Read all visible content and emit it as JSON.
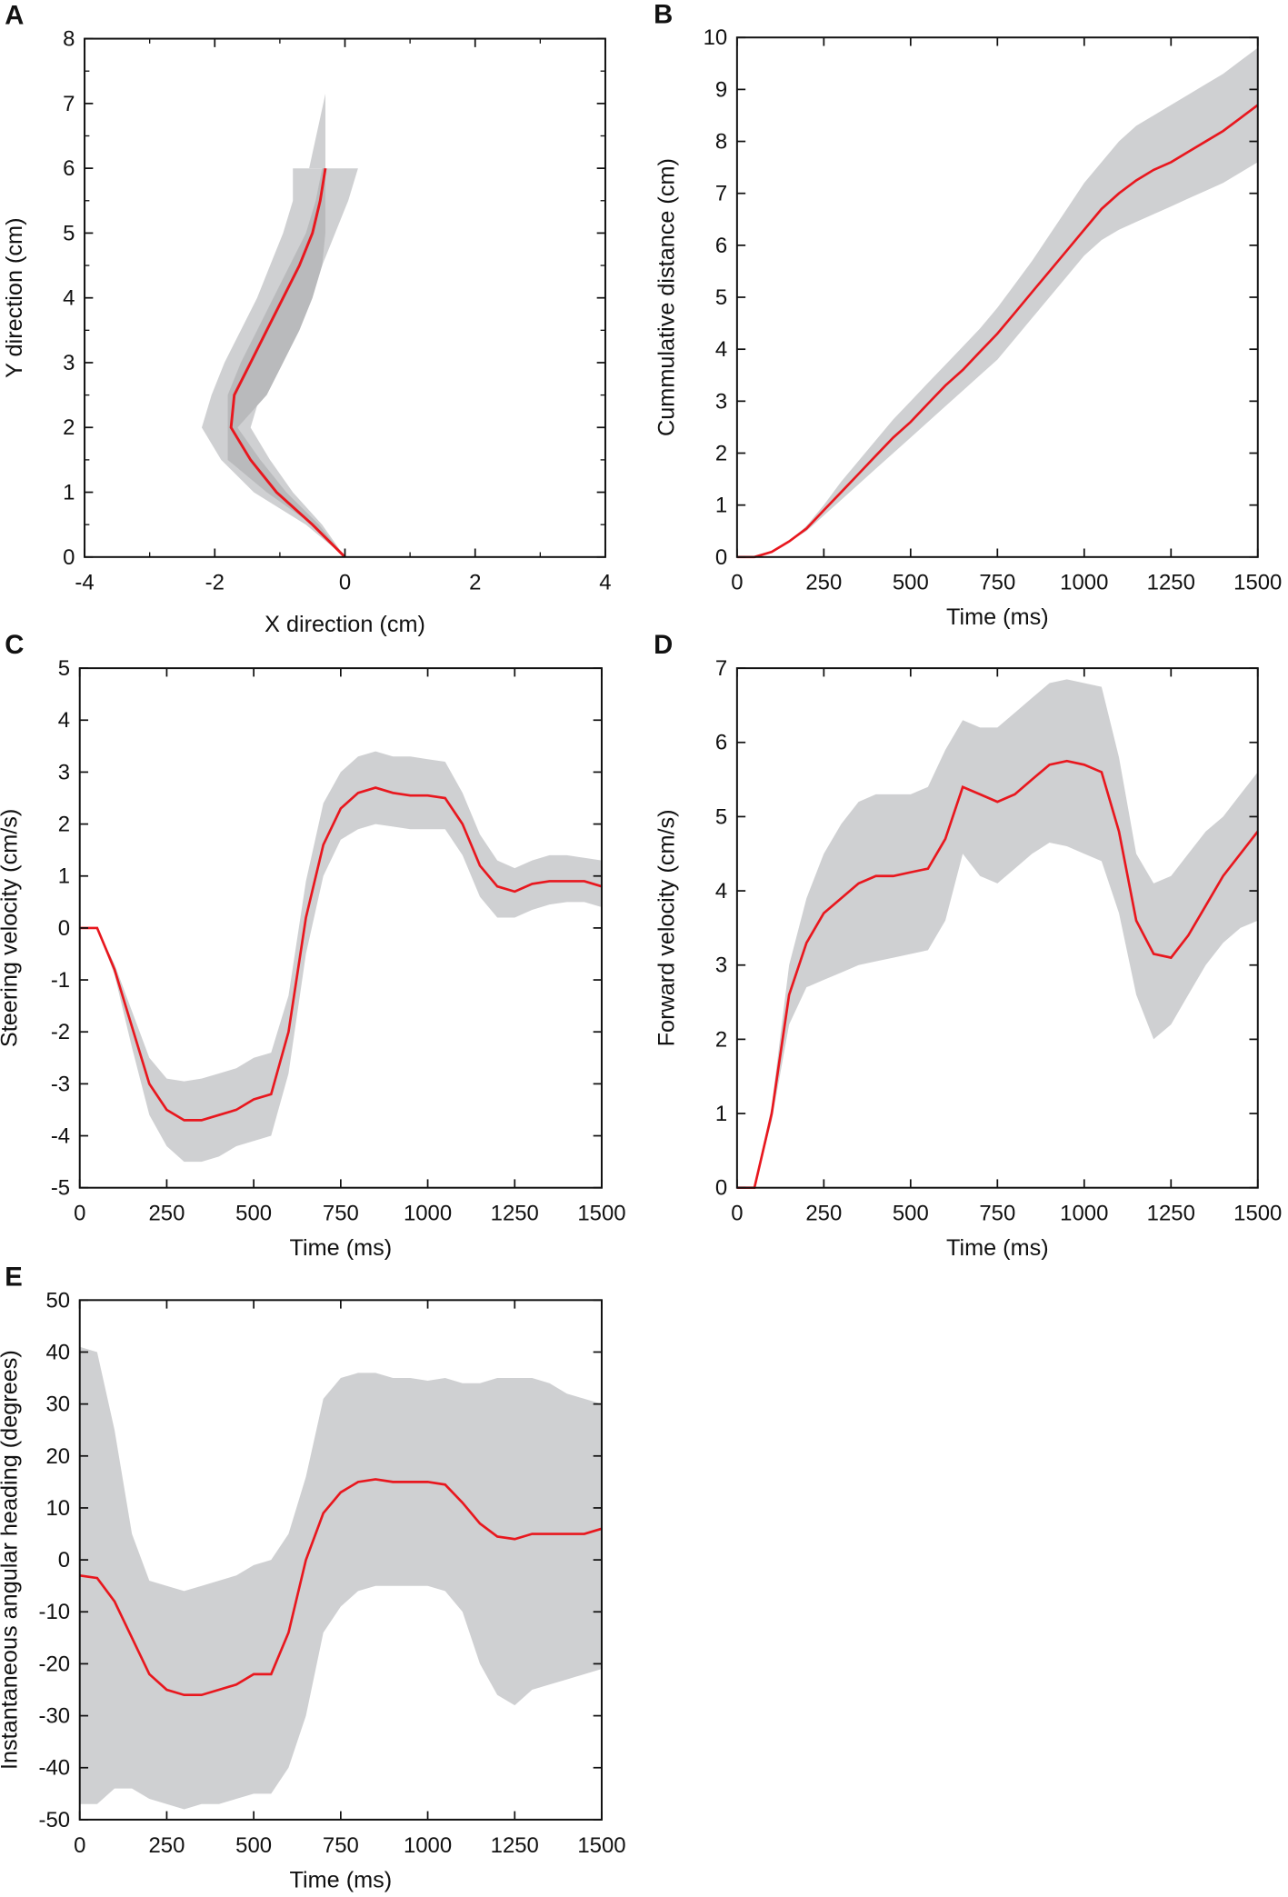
{
  "colors": {
    "mean": "#e8171e",
    "band": "#cfd0d2",
    "band_dark": "#b9babc",
    "axis": "#111111"
  },
  "chart_data": [
    {
      "id": "A",
      "panel_label": "A",
      "type": "line",
      "xlabel": "X direction (cm)",
      "ylabel": "Y direction (cm)",
      "xlim": [
        -4,
        4
      ],
      "ylim": [
        0,
        8
      ],
      "xticks": [
        -4,
        -2,
        0,
        2,
        4
      ],
      "yticks": [
        0,
        1,
        2,
        3,
        4,
        5,
        6,
        7,
        8
      ],
      "orientation": "x_vs_y",
      "y": [
        0,
        0.5,
        1,
        1.5,
        2,
        2.5,
        3,
        3.5,
        4,
        4.5,
        5,
        5.5,
        6
      ],
      "mean_x": [
        0,
        -0.5,
        -1.05,
        -1.45,
        -1.75,
        -1.7,
        -1.45,
        -1.2,
        -0.95,
        -0.7,
        -0.5,
        -0.38,
        -0.3
      ],
      "band_lo_x": [
        0,
        -0.6,
        -1.4,
        -1.9,
        -2.2,
        -2.05,
        -1.85,
        -1.6,
        -1.35,
        -1.15,
        -0.95,
        -0.8,
        -0.8
      ],
      "band_hi_x": [
        0,
        -0.35,
        -0.8,
        -1.15,
        -1.45,
        -1.3,
        -1.05,
        -0.8,
        -0.55,
        -0.35,
        -0.15,
        0.05,
        0.2
      ],
      "inner_lo_x": [
        0,
        -0.5,
        -1.2,
        -1.8,
        -1.8,
        -1.8,
        -1.6,
        -1.35,
        -1.1,
        -0.85,
        -0.6,
        -0.45,
        -0.35
      ],
      "inner_hi_x": [
        0,
        -0.4,
        -0.9,
        -1.3,
        -1.65,
        -1.2,
        -0.95,
        -0.7,
        -0.5,
        -0.35,
        -0.3,
        -0.3,
        -0.3
      ],
      "spike": [
        [
          -0.55,
          6
        ],
        [
          -0.3,
          7.15
        ],
        [
          -0.3,
          6
        ]
      ]
    },
    {
      "id": "B",
      "panel_label": "B",
      "type": "line",
      "xlabel": "Time (ms)",
      "ylabel": "Cummulative distance (cm)",
      "xlim": [
        0,
        1500
      ],
      "ylim": [
        0,
        10
      ],
      "xticks": [
        0,
        250,
        500,
        750,
        1000,
        1250,
        1500
      ],
      "yticks": [
        0,
        1,
        2,
        3,
        4,
        5,
        6,
        7,
        8,
        9,
        10
      ],
      "x": [
        0,
        50,
        100,
        150,
        200,
        250,
        300,
        350,
        400,
        450,
        500,
        550,
        600,
        650,
        700,
        750,
        800,
        850,
        900,
        950,
        1000,
        1050,
        1100,
        1150,
        1200,
        1250,
        1300,
        1350,
        1400,
        1450,
        1500
      ],
      "mean": [
        0,
        0,
        0.1,
        0.3,
        0.55,
        0.9,
        1.25,
        1.6,
        1.95,
        2.3,
        2.6,
        2.95,
        3.3,
        3.6,
        3.95,
        4.3,
        4.7,
        5.1,
        5.5,
        5.9,
        6.3,
        6.7,
        7.0,
        7.25,
        7.45,
        7.6,
        7.8,
        8.0,
        8.2,
        8.45,
        8.7
      ],
      "lo": [
        0,
        0,
        0.1,
        0.3,
        0.5,
        0.8,
        1.1,
        1.4,
        1.7,
        2.0,
        2.3,
        2.6,
        2.9,
        3.2,
        3.5,
        3.8,
        4.2,
        4.6,
        5.0,
        5.4,
        5.8,
        6.1,
        6.3,
        6.45,
        6.6,
        6.75,
        6.9,
        7.05,
        7.2,
        7.4,
        7.6
      ],
      "hi": [
        0,
        0,
        0.1,
        0.3,
        0.6,
        1.0,
        1.45,
        1.85,
        2.25,
        2.65,
        3.0,
        3.35,
        3.7,
        4.05,
        4.4,
        4.8,
        5.25,
        5.7,
        6.2,
        6.7,
        7.2,
        7.6,
        8.0,
        8.3,
        8.5,
        8.7,
        8.9,
        9.1,
        9.3,
        9.55,
        9.8
      ]
    },
    {
      "id": "C",
      "panel_label": "C",
      "type": "line",
      "xlabel": "Time (ms)",
      "ylabel": "Steering velocity (cm/s)",
      "xlim": [
        0,
        1500
      ],
      "ylim": [
        -5,
        5
      ],
      "xticks": [
        0,
        250,
        500,
        750,
        1000,
        1250,
        1500
      ],
      "yticks": [
        -5,
        -4,
        -3,
        -2,
        -1,
        0,
        1,
        2,
        3,
        4,
        5
      ],
      "x": [
        0,
        50,
        100,
        150,
        200,
        250,
        300,
        350,
        400,
        450,
        500,
        550,
        600,
        650,
        700,
        750,
        800,
        850,
        900,
        950,
        1000,
        1050,
        1100,
        1150,
        1200,
        1250,
        1300,
        1350,
        1400,
        1450,
        1500
      ],
      "mean": [
        0,
        0,
        -0.8,
        -1.9,
        -3.0,
        -3.5,
        -3.7,
        -3.7,
        -3.6,
        -3.5,
        -3.3,
        -3.2,
        -2.0,
        0.2,
        1.6,
        2.3,
        2.6,
        2.7,
        2.6,
        2.55,
        2.55,
        2.5,
        2.0,
        1.2,
        0.8,
        0.7,
        0.85,
        0.9,
        0.9,
        0.9,
        0.8
      ],
      "lo": [
        0,
        0,
        -0.9,
        -2.3,
        -3.6,
        -4.2,
        -4.5,
        -4.5,
        -4.4,
        -4.2,
        -4.1,
        -4.0,
        -2.8,
        -0.5,
        1.0,
        1.7,
        1.9,
        2.0,
        1.95,
        1.9,
        1.9,
        1.9,
        1.4,
        0.6,
        0.2,
        0.2,
        0.35,
        0.45,
        0.5,
        0.5,
        0.4
      ],
      "hi": [
        0,
        0,
        -0.7,
        -1.6,
        -2.5,
        -2.9,
        -2.95,
        -2.9,
        -2.8,
        -2.7,
        -2.5,
        -2.4,
        -1.3,
        0.9,
        2.4,
        3.0,
        3.3,
        3.4,
        3.3,
        3.3,
        3.25,
        3.2,
        2.6,
        1.8,
        1.3,
        1.15,
        1.3,
        1.4,
        1.4,
        1.35,
        1.3
      ]
    },
    {
      "id": "D",
      "panel_label": "D",
      "type": "line",
      "xlabel": "Time (ms)",
      "ylabel": "Forward velocity (cm/s)",
      "xlim": [
        0,
        1500
      ],
      "ylim": [
        0,
        7
      ],
      "xticks": [
        0,
        250,
        500,
        750,
        1000,
        1250,
        1500
      ],
      "yticks": [
        0,
        1,
        2,
        3,
        4,
        5,
        6,
        7
      ],
      "x": [
        0,
        50,
        100,
        150,
        200,
        250,
        300,
        350,
        400,
        450,
        500,
        550,
        600,
        650,
        700,
        750,
        800,
        850,
        900,
        950,
        1000,
        1050,
        1100,
        1150,
        1200,
        1250,
        1300,
        1350,
        1400,
        1450,
        1500
      ],
      "mean": [
        0,
        0,
        1.0,
        2.6,
        3.3,
        3.7,
        3.9,
        4.1,
        4.2,
        4.2,
        4.25,
        4.3,
        4.7,
        5.4,
        5.3,
        5.2,
        5.3,
        5.5,
        5.7,
        5.75,
        5.7,
        5.6,
        4.8,
        3.6,
        3.15,
        3.1,
        3.4,
        3.8,
        4.2,
        4.5,
        4.8
      ],
      "lo": [
        0,
        0,
        0.9,
        2.2,
        2.7,
        2.8,
        2.9,
        3.0,
        3.05,
        3.1,
        3.15,
        3.2,
        3.6,
        4.5,
        4.2,
        4.1,
        4.3,
        4.5,
        4.65,
        4.6,
        4.5,
        4.4,
        3.7,
        2.6,
        2.0,
        2.2,
        2.6,
        3.0,
        3.3,
        3.5,
        3.6
      ],
      "hi": [
        0,
        0,
        1.1,
        3.0,
        3.9,
        4.5,
        4.9,
        5.2,
        5.3,
        5.3,
        5.3,
        5.4,
        5.9,
        6.3,
        6.2,
        6.2,
        6.4,
        6.6,
        6.8,
        6.85,
        6.8,
        6.75,
        5.8,
        4.5,
        4.1,
        4.2,
        4.5,
        4.8,
        5.0,
        5.3,
        5.6
      ]
    },
    {
      "id": "E",
      "panel_label": "E",
      "type": "line",
      "xlabel": "Time (ms)",
      "ylabel": "Instantaneous angular heading (degrees)",
      "xlim": [
        0,
        1500
      ],
      "ylim": [
        -50,
        50
      ],
      "xticks": [
        0,
        250,
        500,
        750,
        1000,
        1250,
        1500
      ],
      "yticks": [
        -50,
        -40,
        -30,
        -20,
        -10,
        0,
        10,
        20,
        30,
        40,
        50
      ],
      "x": [
        0,
        50,
        100,
        150,
        200,
        250,
        300,
        350,
        400,
        450,
        500,
        550,
        600,
        650,
        700,
        750,
        800,
        850,
        900,
        950,
        1000,
        1050,
        1100,
        1150,
        1200,
        1250,
        1300,
        1350,
        1400,
        1450,
        1500
      ],
      "mean": [
        -3,
        -3.5,
        -8,
        -15,
        -22,
        -25,
        -26,
        -26,
        -25,
        -24,
        -22,
        -22,
        -14,
        0,
        9,
        13,
        15,
        15.5,
        15,
        15,
        15,
        14.5,
        11,
        7,
        4.5,
        4,
        5,
        5,
        5,
        5,
        6
      ],
      "lo": [
        -47,
        -47,
        -44,
        -44,
        -46,
        -47,
        -48,
        -47,
        -47,
        -46,
        -45,
        -45,
        -40,
        -30,
        -14,
        -9,
        -6,
        -5,
        -5,
        -5,
        -5,
        -6,
        -10,
        -20,
        -26,
        -28,
        -25,
        -24,
        -23,
        -22,
        -21
      ],
      "hi": [
        41,
        40,
        25,
        5,
        -4,
        -5,
        -6,
        -5,
        -4,
        -3,
        -1,
        0,
        5,
        16,
        31,
        35,
        36,
        36,
        35,
        35,
        34.5,
        35,
        34,
        34,
        35,
        35,
        35,
        34,
        32,
        31,
        30
      ]
    }
  ]
}
